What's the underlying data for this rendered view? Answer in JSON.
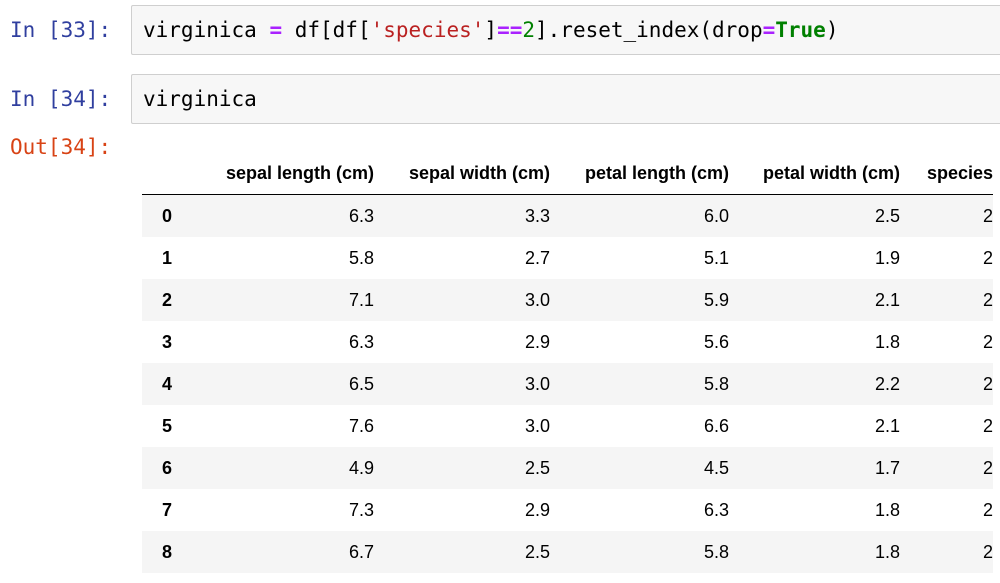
{
  "cells": [
    {
      "prompt": "In [33]:",
      "code_tokens": [
        {
          "text": "virginica ",
          "cls": ""
        },
        {
          "text": "=",
          "cls": "tok-op"
        },
        {
          "text": " df[df[",
          "cls": ""
        },
        {
          "text": "'species'",
          "cls": "tok-str"
        },
        {
          "text": "]",
          "cls": ""
        },
        {
          "text": "==",
          "cls": "tok-op"
        },
        {
          "text": "2",
          "cls": "tok-num"
        },
        {
          "text": "].reset_index(drop",
          "cls": ""
        },
        {
          "text": "=",
          "cls": "tok-op"
        },
        {
          "text": "True",
          "cls": "tok-kw"
        },
        {
          "text": ")",
          "cls": ""
        }
      ]
    },
    {
      "prompt": "In [34]:",
      "code_tokens": [
        {
          "text": "virginica",
          "cls": ""
        }
      ]
    }
  ],
  "output": {
    "prompt": "Out[34]:",
    "columns": [
      "",
      "sepal length (cm)",
      "sepal width (cm)",
      "petal length (cm)",
      "petal width (cm)",
      "species"
    ],
    "rows": [
      [
        "0",
        "6.3",
        "3.3",
        "6.0",
        "2.5",
        "2"
      ],
      [
        "1",
        "5.8",
        "2.7",
        "5.1",
        "1.9",
        "2"
      ],
      [
        "2",
        "7.1",
        "3.0",
        "5.9",
        "2.1",
        "2"
      ],
      [
        "3",
        "6.3",
        "2.9",
        "5.6",
        "1.8",
        "2"
      ],
      [
        "4",
        "6.5",
        "3.0",
        "5.8",
        "2.2",
        "2"
      ],
      [
        "5",
        "7.6",
        "3.0",
        "6.6",
        "2.1",
        "2"
      ],
      [
        "6",
        "4.9",
        "2.5",
        "4.5",
        "1.7",
        "2"
      ],
      [
        "7",
        "7.3",
        "2.9",
        "6.3",
        "1.8",
        "2"
      ],
      [
        "8",
        "6.7",
        "2.5",
        "5.8",
        "1.8",
        "2"
      ]
    ]
  },
  "colors": {
    "prompt_in": "#303f9f",
    "prompt_out": "#d84315",
    "input_bg": "#f7f7f7",
    "input_border": "#cfcfcf",
    "operator": "#aa22ff",
    "string": "#ba2121",
    "number_keyword": "#008000"
  }
}
